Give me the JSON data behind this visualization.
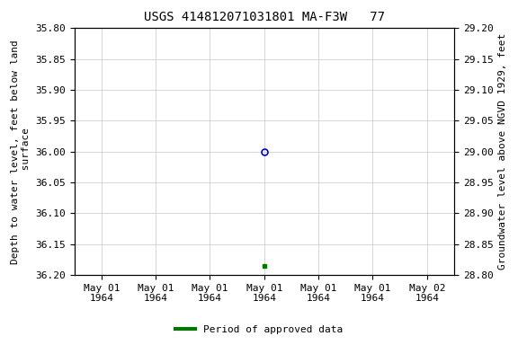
{
  "title": "USGS 414812071031801 MA-F3W   77",
  "ylabel_left": "Depth to water level, feet below land\n surface",
  "ylabel_right": "Groundwater level above NGVD 1929, feet",
  "ylim_left": [
    35.8,
    36.2
  ],
  "ylim_right": [
    28.8,
    29.2
  ],
  "yticks_left": [
    35.8,
    35.85,
    35.9,
    35.95,
    36.0,
    36.05,
    36.1,
    36.15,
    36.2
  ],
  "yticks_right": [
    28.8,
    28.85,
    28.9,
    28.95,
    29.0,
    29.05,
    29.1,
    29.15,
    29.2
  ],
  "point_open_y": 36.0,
  "point_open_color": "#0000cc",
  "point_filled_y": 36.185,
  "point_filled_color": "#007700",
  "legend_label": "Period of approved data",
  "legend_color": "#007700",
  "grid_color": "#c8c8c8",
  "background_color": "#ffffff",
  "title_fontsize": 10,
  "axis_fontsize": 8,
  "tick_fontsize": 8,
  "x_tick_labels": [
    "May 01\n1964",
    "May 01\n1964",
    "May 01\n1964",
    "May 01\n1964",
    "May 01\n1964",
    "May 01\n1964",
    "May 02\n1964"
  ],
  "x_tick_positions": [
    0,
    1,
    2,
    3,
    4,
    5,
    6
  ]
}
